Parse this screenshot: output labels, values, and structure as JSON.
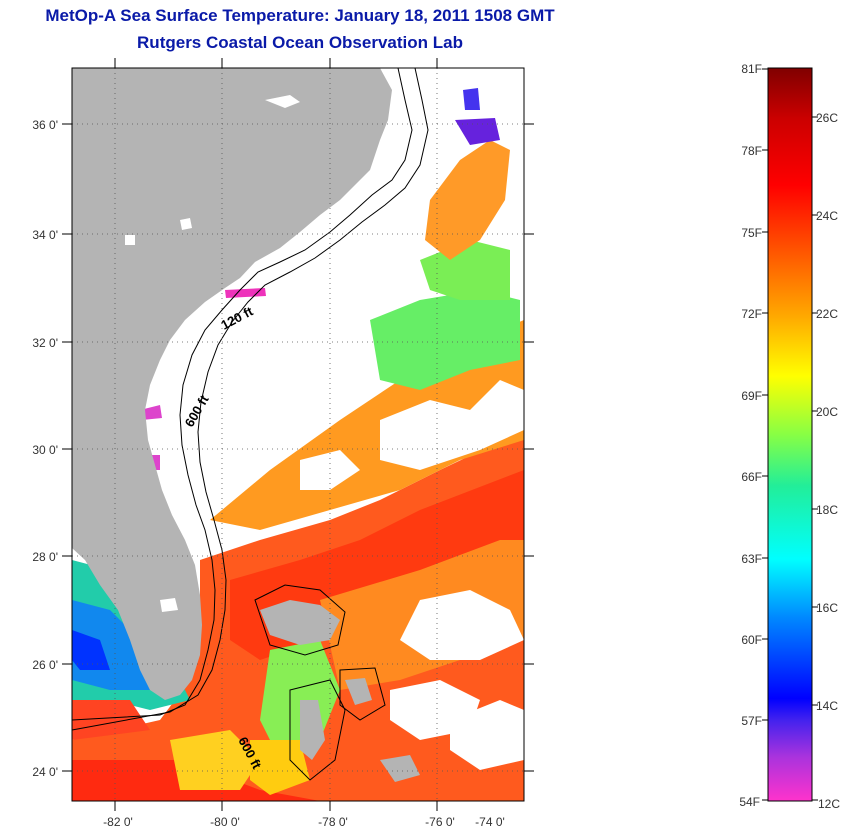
{
  "title": {
    "line1": "MetOp-A Sea Surface Temperature:  January 18, 2011 1508 GMT",
    "line2": "Rutgers Coastal Ocean Observation Lab"
  },
  "map": {
    "lat_labels": [
      "36 0'",
      "34 0'",
      "32 0'",
      "30 0'",
      "28 0'",
      "26 0'",
      "24 0'"
    ],
    "lon_labels": [
      "-82 0'",
      "-80 0'",
      "-78 0'",
      "-76 0'",
      "-74 0'"
    ],
    "lat_range": [
      23,
      37.2
    ],
    "lon_range": [
      -83,
      -73
    ],
    "contour_labels": [
      "120 ft",
      "600 ft",
      "600 ft"
    ],
    "land_color": "#b4b4b4",
    "cloud_color": "#ffffff"
  },
  "colorbar": {
    "fahrenheit_labels": [
      "81F",
      "78F",
      "75F",
      "72F",
      "69F",
      "66F",
      "63F",
      "60F",
      "57F",
      "54F"
    ],
    "celsius_labels": [
      "26C",
      "24C",
      "22C",
      "20C",
      "18C",
      "16C",
      "14C",
      "12C"
    ],
    "range_f": [
      54,
      81
    ],
    "range_c": [
      12,
      27
    ],
    "colors": [
      "#ff33cc",
      "#8a2be2",
      "#0000ff",
      "#00aaff",
      "#00ffff",
      "#22ee88",
      "#aaff33",
      "#ffff00",
      "#ffaa00",
      "#ff5500",
      "#ff0000",
      "#cc0000",
      "#800000"
    ]
  }
}
